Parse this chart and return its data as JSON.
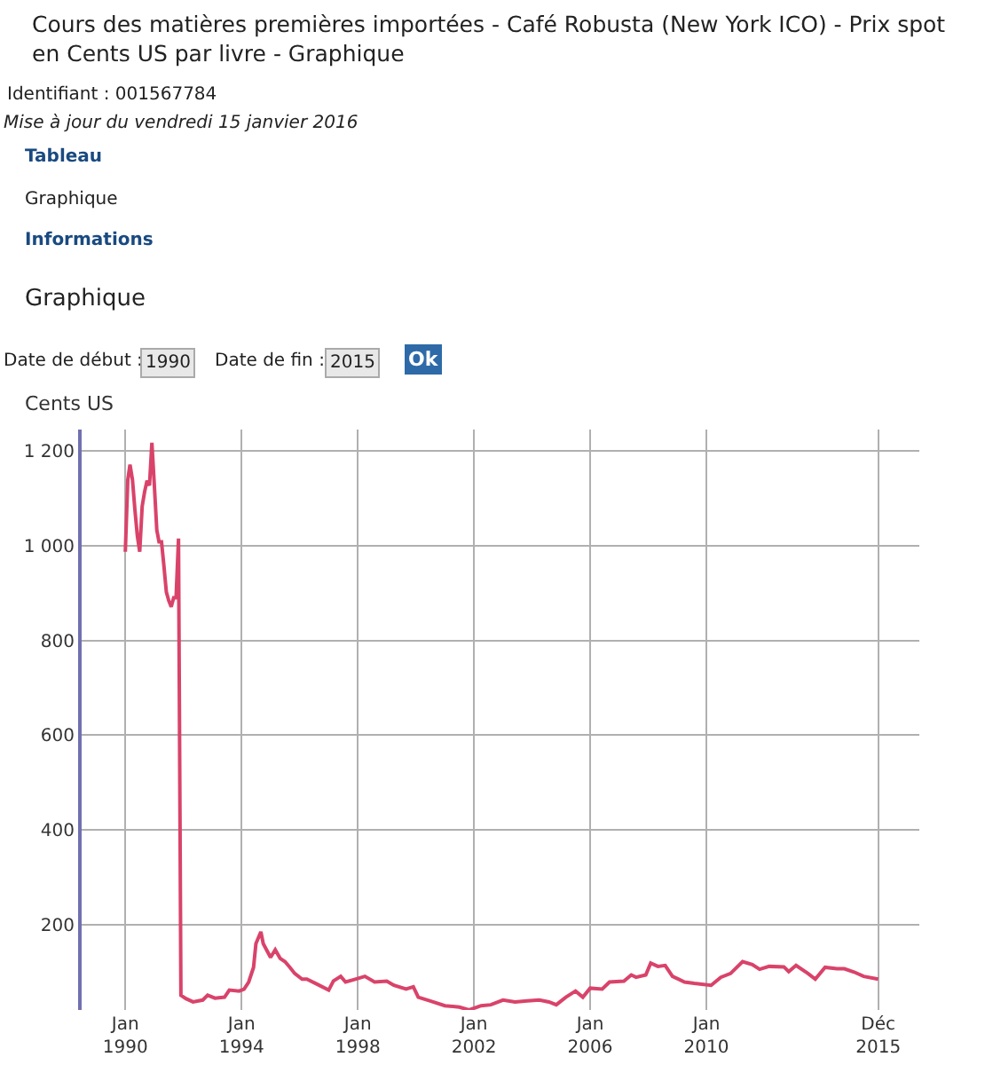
{
  "chart_data": {
    "type": "line",
    "title": "Cours des matières premières importées - Café Robusta (New York ICO) - Prix spot\nen Cents US par livre - Graphique",
    "ylabel": "Cents US",
    "annotations": [
      "Identifiant : 001567784",
      "Mise à jour du vendredi 15 janvier 2016",
      "Tableau",
      "Graphique",
      "Informations",
      "Graphique",
      "Date de début :",
      "1990",
      "Date de fin :",
      "2015",
      "Ok"
    ],
    "x": [
      "1990-01",
      "1990-02",
      "1990-03",
      "1990-04",
      "1990-05",
      "1990-06",
      "1990-07",
      "1990-08",
      "1990-09",
      "1990-10",
      "1990-11",
      "1990-12",
      "1991-01",
      "1991-02",
      "1991-03",
      "1991-04",
      "1991-05",
      "1991-06",
      "1991-07",
      "1991-08",
      "1991-09",
      "1991-10",
      "1991-11",
      "1991-12",
      "1992-02",
      "1992-05",
      "1992-09",
      "1992-11",
      "1993-02",
      "1993-06",
      "1993-08",
      "1993-12",
      "1994-02",
      "1994-04",
      "1994-06",
      "1994-07",
      "1994-09",
      "1994-10",
      "1995-01",
      "1995-03",
      "1995-05",
      "1995-07",
      "1995-09",
      "1995-11",
      "1996-02",
      "1996-04",
      "1996-08",
      "1997-01",
      "1997-03",
      "1997-06",
      "1997-08",
      "1997-12",
      "1998-04",
      "1998-08",
      "1999-01",
      "1999-04",
      "1999-09",
      "1999-12",
      "2000-02",
      "2000-07",
      "2001-01",
      "2001-07",
      "2001-11",
      "2002-04",
      "2002-08",
      "2003-01",
      "2003-06",
      "2003-11",
      "2004-04",
      "2004-08",
      "2004-11",
      "2005-03",
      "2005-07",
      "2005-10",
      "2006-01",
      "2006-06",
      "2006-09",
      "2007-03",
      "2007-06",
      "2007-08",
      "2007-12",
      "2008-02",
      "2008-05",
      "2008-08",
      "2008-11",
      "2009-04",
      "2009-08",
      "2010-03",
      "2010-07",
      "2010-11",
      "2011-04",
      "2011-08",
      "2011-11",
      "2012-03",
      "2012-09",
      "2012-11",
      "2013-02",
      "2013-07",
      "2013-10",
      "2014-02",
      "2014-07",
      "2014-10",
      "2015-02",
      "2015-06",
      "2015-12"
    ],
    "series": [
      {
        "color": "#d9436a",
        "values": [
          987,
          1139,
          1171,
          1139,
          1077,
          1021,
          987,
          1083,
          1114,
          1137,
          1127,
          1217,
          1127,
          1033,
          1008,
          1008,
          958,
          902,
          884,
          871,
          890,
          890,
          1015,
          51,
          44,
          37,
          41,
          51,
          45,
          47,
          62,
          60,
          64,
          79,
          110,
          160,
          185,
          160,
          131,
          147,
          129,
          122,
          110,
          97,
          85,
          85,
          75,
          62,
          81,
          91,
          79,
          85,
          91,
          79,
          81,
          72,
          64,
          69,
          47,
          39,
          29,
          26,
          20,
          29,
          31,
          41,
          37,
          39,
          41,
          37,
          31,
          47,
          60,
          47,
          66,
          64,
          79,
          81,
          94,
          89,
          94,
          119,
          112,
          114,
          91,
          79,
          76,
          72,
          89,
          97,
          122,
          116,
          106,
          112,
          111,
          101,
          114,
          97,
          85,
          110,
          107,
          107,
          100,
          91,
          85
        ]
      }
    ],
    "xlim": [
      "1988-07",
      "2017-05"
    ],
    "xticks": [
      {
        "value": "1990-01",
        "label": "Jan\n1990"
      },
      {
        "value": "1994-01",
        "label": "Jan\n1994"
      },
      {
        "value": "1998-01",
        "label": "Jan\n1998"
      },
      {
        "value": "2002-01",
        "label": "Jan\n2002"
      },
      {
        "value": "2006-01",
        "label": "Jan\n2006"
      },
      {
        "value": "2010-01",
        "label": "Jan\n2010"
      },
      {
        "value": "2015-12",
        "label": "Déc\n2015"
      }
    ],
    "ylim": [
      20,
      1245
    ],
    "yticks": [
      {
        "value": 200,
        "label": "200"
      },
      {
        "value": 400,
        "label": "400"
      },
      {
        "value": 600,
        "label": "600"
      },
      {
        "value": 800,
        "label": "800"
      },
      {
        "value": 1000,
        "label": "1 000"
      },
      {
        "value": 1200,
        "label": "1 200"
      }
    ],
    "grid": true,
    "marker": "none",
    "line_style": "solid"
  }
}
